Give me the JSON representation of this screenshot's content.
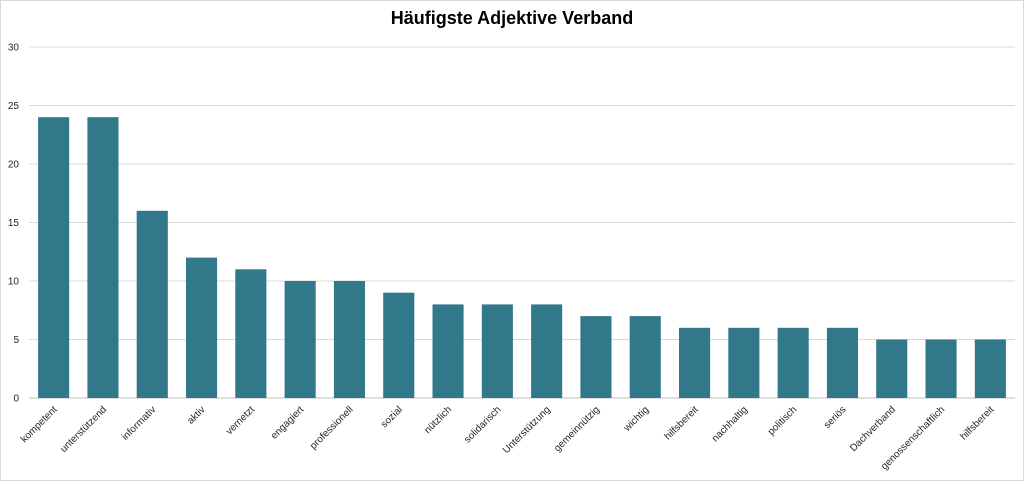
{
  "chart_data": {
    "type": "bar",
    "title": "Häufigste Adjektive Verband",
    "xlabel": "",
    "ylabel": "",
    "ylim": [
      0,
      30
    ],
    "yticks": [
      0,
      5,
      10,
      15,
      20,
      25,
      30
    ],
    "grid": true,
    "legend": "none",
    "bar_color": "#31788b",
    "categories": [
      "kompetent",
      "unterstützend",
      "informativ",
      "aktiv",
      "vernetzt",
      "engagiert",
      "professionell",
      "sozial",
      "nützlich",
      "solidarisch",
      "Unterstützung",
      "gemeinnützig",
      "wichtig",
      "hilfsbereit",
      "nachhaltig",
      "politisch",
      "seriös",
      "Dachverband",
      "genossenschaftlich",
      "hilfsbereit"
    ],
    "values": [
      24,
      24,
      16,
      12,
      11,
      10,
      10,
      9,
      8,
      8,
      8,
      7,
      7,
      6,
      6,
      6,
      6,
      5,
      5,
      5
    ]
  }
}
